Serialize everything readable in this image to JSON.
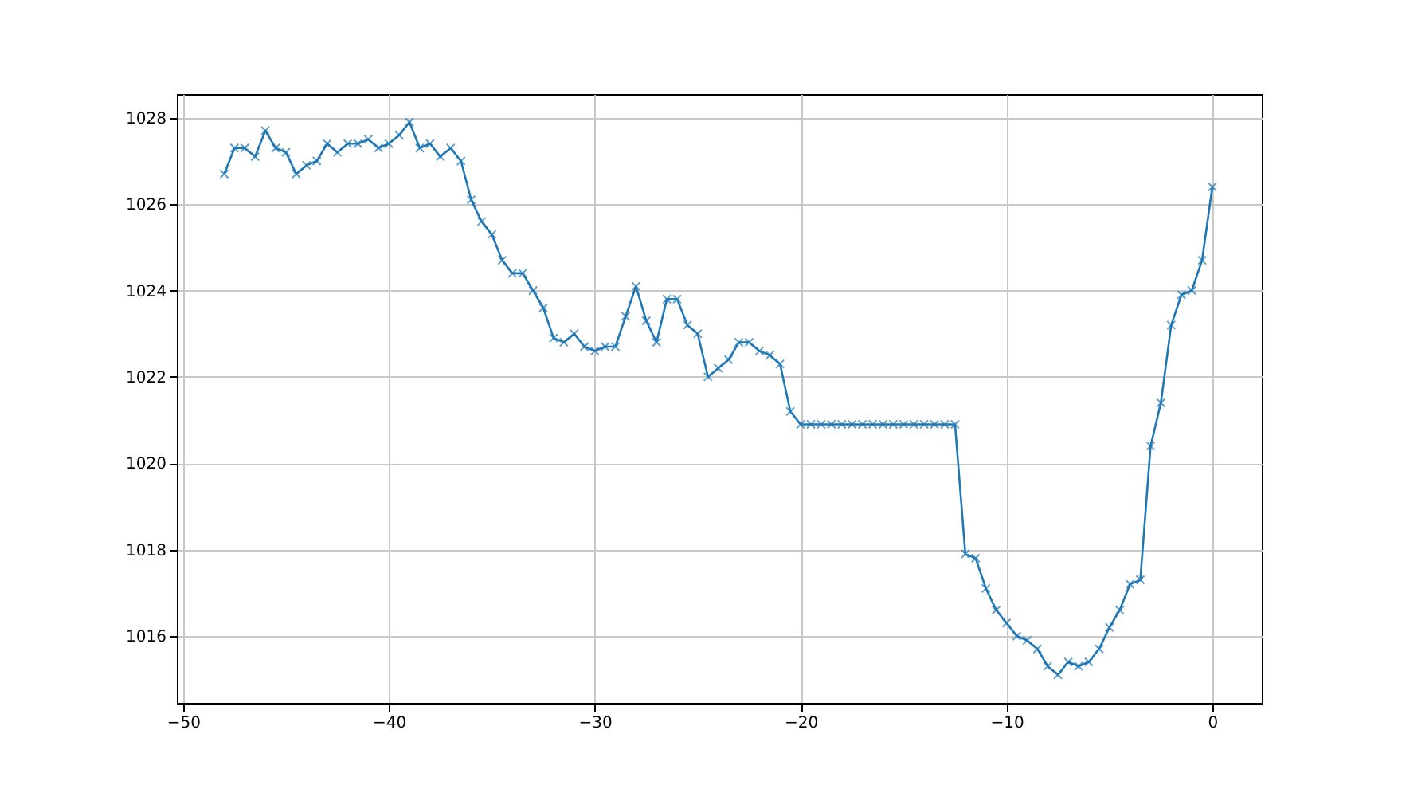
{
  "chart_data": {
    "type": "line",
    "x": [
      -48,
      -47.5,
      -47,
      -46.5,
      -46,
      -45.5,
      -45,
      -44.5,
      -44,
      -43.5,
      -43,
      -42.5,
      -42,
      -41.5,
      -41,
      -40.5,
      -40,
      -39.5,
      -39,
      -38.5,
      -38,
      -37.5,
      -37,
      -36.5,
      -36,
      -35.5,
      -35,
      -34.5,
      -34,
      -33.5,
      -33,
      -32.5,
      -32,
      -31.5,
      -31,
      -30.5,
      -30,
      -29.5,
      -29,
      -28.5,
      -28,
      -27.5,
      -27,
      -26.5,
      -26,
      -25.5,
      -25,
      -24.5,
      -24,
      -23.5,
      -23,
      -22.5,
      -22,
      -21.5,
      -21,
      -20.5,
      -20,
      -19.5,
      -19,
      -18.5,
      -18,
      -17.5,
      -17,
      -16.5,
      -16,
      -15.5,
      -15,
      -14.5,
      -14,
      -13.5,
      -13,
      -12.5,
      -12,
      -11.5,
      -11,
      -10.5,
      -10,
      -9.5,
      -9,
      -8.5,
      -8,
      -7.5,
      -7,
      -6.5,
      -6,
      -5.5,
      -5,
      -4.5,
      -4,
      -3.5,
      -3,
      -2.5,
      -2,
      -1.5,
      -1,
      -0.5,
      0
    ],
    "series": [
      {
        "color": "#1f77b4",
        "values": [
          1026.7,
          1027.3,
          1027.3,
          1027.1,
          1027.7,
          1027.3,
          1027.2,
          1026.7,
          1026.9,
          1027.0,
          1027.4,
          1027.2,
          1027.4,
          1027.4,
          1027.5,
          1027.3,
          1027.4,
          1027.6,
          1027.9,
          1027.3,
          1027.4,
          1027.1,
          1027.3,
          1027.0,
          1026.1,
          1025.6,
          1025.3,
          1024.7,
          1024.4,
          1024.4,
          1024.0,
          1023.6,
          1022.9,
          1022.8,
          1023.0,
          1022.7,
          1022.6,
          1022.7,
          1022.7,
          1023.4,
          1024.1,
          1023.3,
          1022.8,
          1023.8,
          1023.8,
          1023.2,
          1023.0,
          1022.0,
          1022.2,
          1022.4,
          1022.8,
          1022.8,
          1022.6,
          1022.5,
          1022.3,
          1021.2,
          1020.9,
          1020.9,
          1020.9,
          1020.9,
          1020.9,
          1020.9,
          1020.9,
          1020.9,
          1020.9,
          1020.9,
          1020.9,
          1020.9,
          1020.9,
          1020.9,
          1020.9,
          1020.9,
          1017.9,
          1017.8,
          1017.1,
          1016.6,
          1016.3,
          1016.0,
          1015.9,
          1015.7,
          1015.3,
          1015.1,
          1015.4,
          1015.3,
          1015.4,
          1015.7,
          1016.2,
          1016.6,
          1017.2,
          1017.3,
          1020.4,
          1021.4,
          1023.2,
          1023.9,
          1024.0,
          1024.7,
          1026.4
        ]
      }
    ],
    "xlim": [
      -50.3,
      2.4
    ],
    "xticks": [
      -50,
      -40,
      -30,
      -20,
      -10,
      0
    ],
    "ylim": [
      1014.45,
      1028.55
    ],
    "yticks": [
      1016,
      1018,
      1020,
      1022,
      1024,
      1026,
      1028
    ],
    "grid": true,
    "marker": "cross",
    "line_style": "solid"
  }
}
